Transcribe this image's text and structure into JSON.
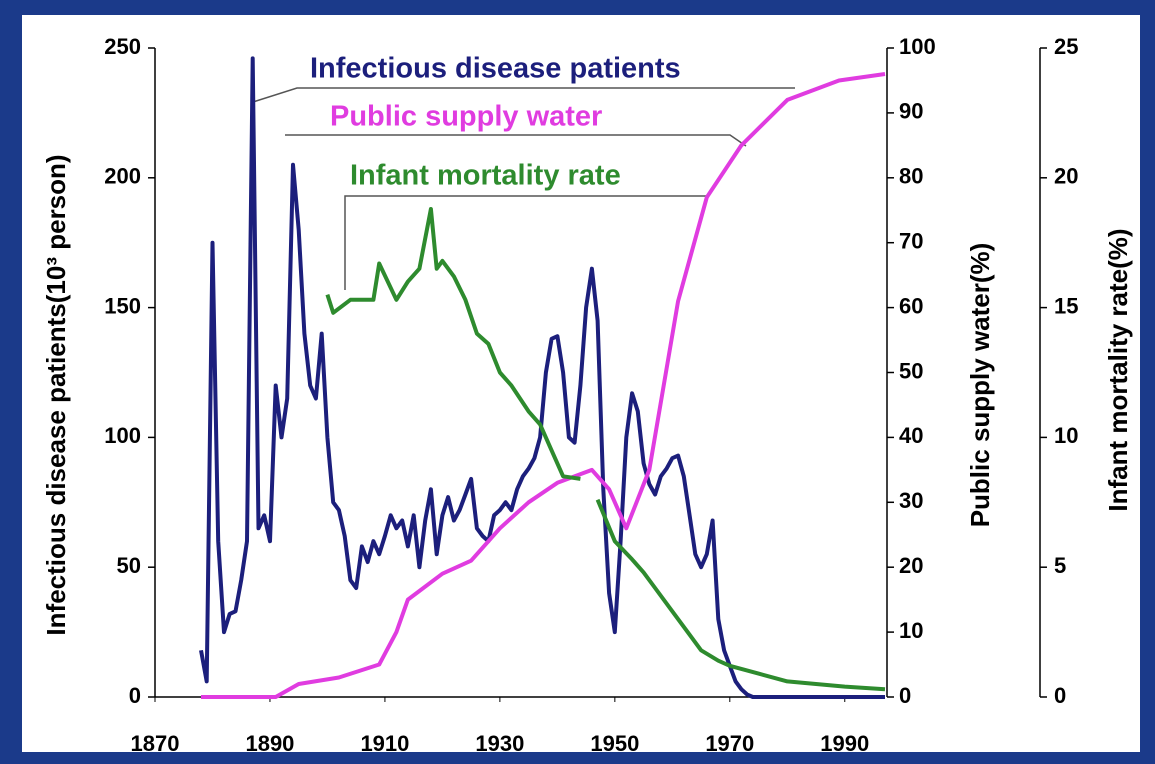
{
  "chart_data": {
    "type": "line",
    "annotations": [
      "Infectious disease patients",
      "Public supply water",
      "Infant mortality rate"
    ],
    "ylabel": "Infectious disease patients(10³ person)",
    "y2label": "Public supply water(%)",
    "y3label": "Infant mortality rate(%)",
    "xlim": [
      1870,
      1997
    ],
    "xticks": [
      1870,
      1890,
      1910,
      1930,
      1950,
      1970,
      1990
    ],
    "ylim": [
      0,
      250
    ],
    "yticks": [
      0,
      50,
      100,
      150,
      200,
      250
    ],
    "y2lim": [
      0,
      100
    ],
    "y2ticks": [
      0,
      10,
      20,
      30,
      40,
      50,
      60,
      70,
      80,
      90,
      100
    ],
    "y3lim": [
      0,
      25
    ],
    "y3ticks": [
      0,
      5,
      10,
      15,
      20,
      25
    ],
    "series": [
      {
        "name": "Infectious disease patients",
        "color": "#1c1f7c",
        "axis": "y",
        "x": [
          1878,
          1879,
          1880,
          1881,
          1882,
          1883,
          1884,
          1885,
          1886,
          1887,
          1888,
          1889,
          1890,
          1891,
          1892,
          1893,
          1894,
          1895,
          1896,
          1897,
          1898,
          1899,
          1900,
          1901,
          1902,
          1903,
          1904,
          1905,
          1906,
          1907,
          1908,
          1909,
          1910,
          1911,
          1912,
          1913,
          1914,
          1915,
          1916,
          1917,
          1918,
          1919,
          1920,
          1921,
          1922,
          1923,
          1924,
          1925,
          1926,
          1927,
          1928,
          1929,
          1930,
          1931,
          1932,
          1933,
          1934,
          1935,
          1936,
          1937,
          1938,
          1939,
          1940,
          1941,
          1942,
          1943,
          1944,
          1945,
          1946,
          1947,
          1948,
          1949,
          1950,
          1951,
          1952,
          1953,
          1954,
          1955,
          1956,
          1957,
          1958,
          1959,
          1960,
          1961,
          1962,
          1963,
          1964,
          1965,
          1966,
          1967,
          1968,
          1969,
          1970,
          1971,
          1972,
          1973,
          1974,
          1975,
          1997
        ],
        "values": [
          18,
          6,
          175,
          60,
          25,
          32,
          33,
          45,
          60,
          246,
          65,
          70,
          60,
          120,
          100,
          115,
          205,
          180,
          140,
          120,
          115,
          140,
          100,
          75,
          72,
          62,
          45,
          42,
          58,
          52,
          60,
          55,
          62,
          70,
          65,
          68,
          58,
          70,
          50,
          68,
          80,
          55,
          70,
          77,
          68,
          72,
          78,
          84,
          65,
          62,
          60,
          70,
          72,
          75,
          72,
          80,
          85,
          88,
          92,
          100,
          125,
          138,
          139,
          125,
          100,
          98,
          120,
          150,
          165,
          145,
          80,
          40,
          25,
          60,
          100,
          117,
          110,
          90,
          82,
          78,
          85,
          88,
          92,
          93,
          85,
          70,
          55,
          50,
          55,
          68,
          30,
          18,
          12,
          6,
          3,
          1,
          0,
          0,
          0
        ]
      },
      {
        "name": "Public supply water",
        "color": "#e03ce0",
        "axis": "y2",
        "x": [
          1878,
          1891,
          1895,
          1902,
          1909,
          1912,
          1914,
          1920,
          1925,
          1930,
          1935,
          1940,
          1946,
          1949,
          1952,
          1956,
          1961,
          1966,
          1972,
          1980,
          1989,
          1997
        ],
        "values": [
          0,
          0,
          2,
          3,
          5,
          10,
          15,
          19,
          21,
          26,
          30,
          33,
          35,
          32,
          26,
          35,
          61,
          77,
          85,
          92,
          95,
          96
        ]
      },
      {
        "name": "Infant mortality rate",
        "color": "#2e8b2e",
        "axis": "y3",
        "x": [
          1900,
          1901,
          1904,
          1908,
          1909,
          1912,
          1914,
          1916,
          1918,
          1919,
          1920,
          1922,
          1924,
          1926,
          1928,
          1930,
          1932,
          1935,
          1937,
          1939,
          1941,
          1944,
          1946,
          1947,
          1950,
          1953,
          1955,
          1957,
          1960,
          1963,
          1965,
          1968,
          1970,
          1975,
          1980,
          1985,
          1990,
          1997
        ],
        "values": [
          15.5,
          14.8,
          15.3,
          15.3,
          16.7,
          15.3,
          16,
          16.5,
          18.8,
          16.5,
          16.8,
          16.2,
          15.3,
          14,
          13.6,
          12.5,
          12,
          11,
          10.5,
          9.5,
          8.5,
          8.4,
          null,
          7.6,
          6,
          5.3,
          4.8,
          4.2,
          3.3,
          2.4,
          1.8,
          1.4,
          1.2,
          0.9,
          0.6,
          0.5,
          0.4,
          0.3
        ]
      }
    ]
  }
}
